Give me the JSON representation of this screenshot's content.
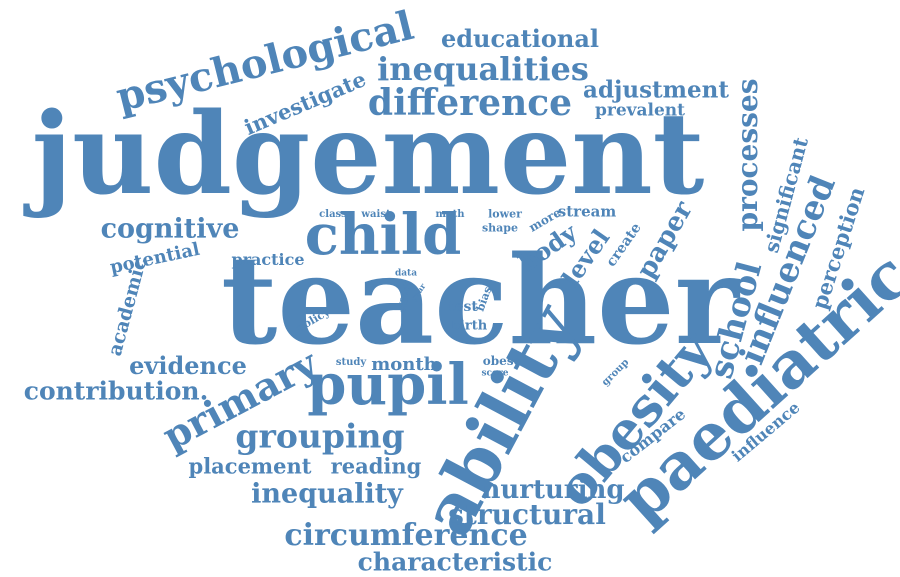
{
  "accent_color": "#4f85b8",
  "words": [
    {
      "key": "judgement",
      "text": "judgement"
    },
    {
      "key": "teacher",
      "text": "teacher"
    },
    {
      "key": "ability",
      "text": "ability"
    },
    {
      "key": "paediatric",
      "text": "paediatric"
    },
    {
      "key": "child",
      "text": "child"
    },
    {
      "key": "pupil",
      "text": "pupil"
    },
    {
      "key": "obesity",
      "text": "obesity"
    },
    {
      "key": "psychological",
      "text": "psychological"
    },
    {
      "key": "difference",
      "text": "difference"
    },
    {
      "key": "inequalities",
      "text": "inequalities"
    },
    {
      "key": "educational",
      "text": "educational"
    },
    {
      "key": "adjustment",
      "text": "adjustment"
    },
    {
      "key": "prevalent",
      "text": "prevalent"
    },
    {
      "key": "investigate",
      "text": "investigate"
    },
    {
      "key": "processes",
      "text": "processes"
    },
    {
      "key": "significant",
      "text": "significant"
    },
    {
      "key": "influenced",
      "text": "influenced"
    },
    {
      "key": "school",
      "text": "school"
    },
    {
      "key": "perception",
      "text": "perception"
    },
    {
      "key": "cognitive",
      "text": "cognitive"
    },
    {
      "key": "potential",
      "text": "potential"
    },
    {
      "key": "practice",
      "text": "practice"
    },
    {
      "key": "academic",
      "text": "academic"
    },
    {
      "key": "evidence",
      "text": "evidence"
    },
    {
      "key": "contribution",
      "text": "contribution."
    },
    {
      "key": "primary",
      "text": "primary"
    },
    {
      "key": "grouping",
      "text": "grouping"
    },
    {
      "key": "placement",
      "text": "placement"
    },
    {
      "key": "reading",
      "text": "reading"
    },
    {
      "key": "inequality",
      "text": "inequality"
    },
    {
      "key": "circumference",
      "text": "circumference"
    },
    {
      "key": "characteristic",
      "text": "characteristic"
    },
    {
      "key": "structural",
      "text": "structural"
    },
    {
      "key": "nurturing",
      "text": "nurturing"
    },
    {
      "key": "compare",
      "text": "compare"
    },
    {
      "key": "influence",
      "text": "influence"
    },
    {
      "key": "group",
      "text": "group"
    },
    {
      "key": "class",
      "text": "class"
    },
    {
      "key": "waist",
      "text": "waist"
    },
    {
      "key": "math",
      "text": "math"
    },
    {
      "key": "lower",
      "text": "lower"
    },
    {
      "key": "shape",
      "text": "shape"
    },
    {
      "key": "more",
      "text": "more"
    },
    {
      "key": "stream",
      "text": "stream"
    },
    {
      "key": "body",
      "text": "body"
    },
    {
      "key": "level",
      "text": "level"
    },
    {
      "key": "create",
      "text": "create"
    },
    {
      "key": "paper",
      "text": "paper"
    },
    {
      "key": "data",
      "text": "data"
    },
    {
      "key": "year",
      "text": "year"
    },
    {
      "key": "effect",
      "text": "effect"
    },
    {
      "key": "test",
      "text": "test"
    },
    {
      "key": "bias",
      "text": "bias"
    },
    {
      "key": "birth",
      "text": "birth"
    },
    {
      "key": "policy",
      "text": "policy"
    },
    {
      "key": "study",
      "text": "study"
    },
    {
      "key": "month",
      "text": "month"
    },
    {
      "key": "obese",
      "text": "obese"
    },
    {
      "key": "score",
      "text": "score"
    }
  ]
}
